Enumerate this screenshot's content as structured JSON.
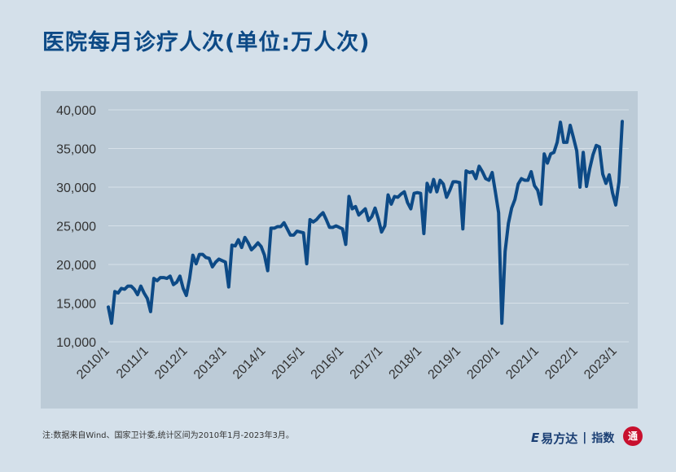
{
  "title": "医院每月诊疗人次(单位:万人次)",
  "note": "注:数据来自Wind、国家卫计委,统计区间为2010年1月-2023年3月。",
  "brand": {
    "logo_glyph": "E",
    "name": "易方达",
    "separator": "|",
    "product": "指数",
    "seal_char": "通"
  },
  "colors": {
    "background": "#d4e0ea",
    "plot_area": "#bccbd7",
    "line": "#0d4a86",
    "title": "#0d4a86",
    "seal": "#c8102e"
  },
  "chart_data": {
    "type": "line",
    "title": "医院每月诊疗人次(单位:万人次)",
    "xlabel": "",
    "ylabel": "",
    "ylim": [
      10000,
      40000
    ],
    "yticks": [
      10000,
      15000,
      20000,
      25000,
      30000,
      35000,
      40000
    ],
    "ytick_labels": [
      "10,000",
      "15,000",
      "20,000",
      "25,000",
      "30,000",
      "35,000",
      "40,000"
    ],
    "xticks": [
      "2010/1",
      "2011/1",
      "2012/1",
      "2013/1",
      "2014/1",
      "2015/1",
      "2016/1",
      "2017/1",
      "2018/1",
      "2019/1",
      "2020/1",
      "2021/1",
      "2022/1",
      "2023/1"
    ],
    "grid": true,
    "legend": "none",
    "x_start": "2010/1",
    "x_end": "2023/3",
    "series": [
      {
        "values": [
          14500,
          12400,
          16500,
          16300,
          16900,
          16800,
          17200,
          17200,
          16800,
          16100,
          17200,
          16300,
          15600,
          13900,
          18200,
          17900,
          18300,
          18300,
          18200,
          18500,
          17400,
          17700,
          18500,
          16900,
          16000,
          18200,
          21200,
          20100,
          21300,
          21300,
          20900,
          20800,
          19700,
          20300,
          20700,
          20500,
          20300,
          17100,
          22500,
          22400,
          23200,
          22200,
          23500,
          22800,
          21900,
          22300,
          22800,
          22300,
          21200,
          19200,
          24700,
          24700,
          24900,
          24900,
          25400,
          24600,
          23800,
          23800,
          24300,
          24200,
          24100,
          20100,
          25800,
          25500,
          25800,
          26300,
          26700,
          25800,
          24800,
          24800,
          25000,
          24800,
          24600,
          22600,
          28800,
          27200,
          27500,
          26400,
          26800,
          27200,
          25700,
          26200,
          27300,
          25900,
          24200,
          25000,
          29000,
          27800,
          28800,
          28700,
          29100,
          29400,
          28000,
          27200,
          29200,
          29300,
          29200,
          24000,
          30500,
          29400,
          31000,
          29400,
          30900,
          30400,
          28700,
          29600,
          30700,
          30700,
          30600,
          24600,
          32100,
          31900,
          32000,
          31100,
          32700,
          32000,
          31100,
          30900,
          31900,
          29400,
          26700,
          12400,
          21700,
          25300,
          27300,
          28400,
          30400,
          31100,
          30900,
          30900,
          32000,
          30200,
          29600,
          27800,
          34300,
          33100,
          34300,
          34500,
          35800,
          38400,
          35800,
          35800,
          38000,
          36400,
          34700,
          30000,
          34500,
          30100,
          32400,
          34200,
          35400,
          35200,
          31700,
          30500,
          31600,
          29300,
          27700,
          30700,
          38500
        ]
      }
    ]
  }
}
